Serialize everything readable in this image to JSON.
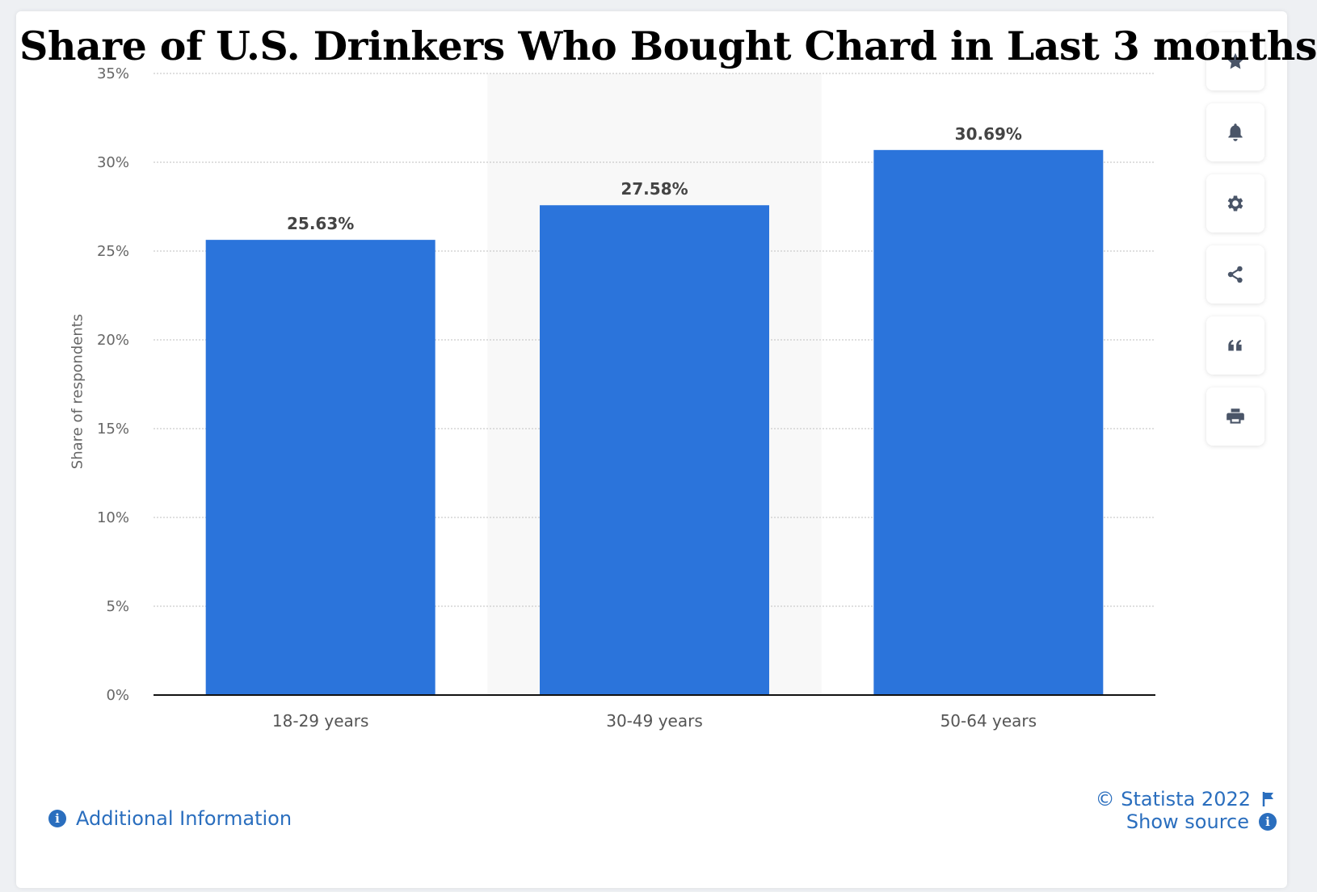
{
  "chart_data": {
    "type": "bar",
    "title": "Share of U.S. Drinkers Who Bought Chard in Last 3 months",
    "xlabel": "",
    "ylabel": "Share of respondents",
    "categories": [
      "18-29 years",
      "30-49 years",
      "50-64 years"
    ],
    "values": [
      25.63,
      27.58,
      30.69
    ],
    "data_labels": [
      "25.63%",
      "27.58%",
      "30.69%"
    ],
    "ylim": [
      0,
      35
    ],
    "yticks": [
      0,
      5,
      10,
      15,
      20,
      25,
      30,
      35
    ],
    "ytick_labels": [
      "0%",
      "5%",
      "10%",
      "15%",
      "20%",
      "25%",
      "30%",
      "35%"
    ],
    "grid": true,
    "bar_color": "#2b74db",
    "highlight_band_color": "#f8f8f8"
  },
  "toolbar": [
    {
      "icon": "star-icon",
      "name": "favorite-button"
    },
    {
      "icon": "bell-icon",
      "name": "notification-button"
    },
    {
      "icon": "gear-icon",
      "name": "settings-button"
    },
    {
      "icon": "share-icon",
      "name": "share-button"
    },
    {
      "icon": "quote-icon",
      "name": "cite-button"
    },
    {
      "icon": "print-icon",
      "name": "print-button"
    }
  ],
  "footer": {
    "copyright": "© Statista 2022",
    "additional_info": "Additional Information",
    "show_source": "Show source"
  },
  "colors": {
    "link": "#2a6ebe",
    "icon": "#4a5568"
  }
}
